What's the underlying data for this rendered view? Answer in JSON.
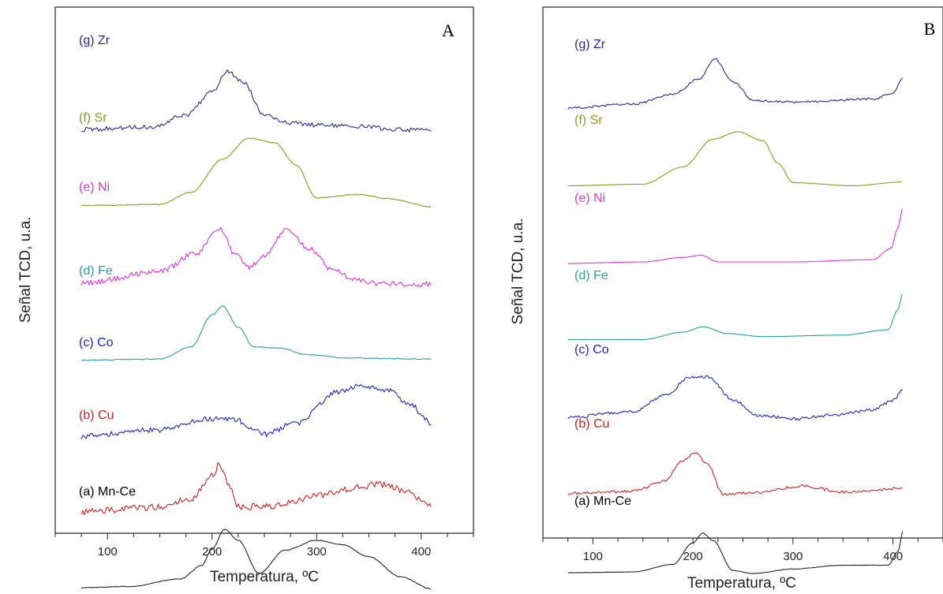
{
  "chart_data": [
    {
      "type": "line",
      "panel_label": "A",
      "xlabel": "Temperatura, ºC",
      "ylabel": "Señal TCD, u.a.",
      "xlim": [
        50,
        450
      ],
      "xticks": [
        100,
        200,
        300,
        400
      ],
      "xtick_labels": [
        "100",
        "200",
        "300",
        "400"
      ],
      "ylim": [
        0,
        7.2
      ],
      "x_range": [
        75,
        410
      ],
      "series": [
        {
          "name": "(a) Mn-Ce",
          "color": "#222222",
          "noise": 0.003,
          "x": [
            75,
            120,
            170,
            190,
            200,
            212,
            225,
            245,
            270,
            300,
            325,
            350,
            380,
            410
          ],
          "values": [
            0.07,
            0.08,
            0.15,
            0.27,
            0.42,
            0.6,
            0.5,
            0.2,
            0.41,
            0.5,
            0.46,
            0.35,
            0.17,
            0.06
          ]
        },
        {
          "name": "(b) Cu",
          "color": "#cc2222",
          "noise": 0.03,
          "x": [
            75,
            150,
            180,
            200,
            207,
            215,
            225,
            260,
            300,
            340,
            360,
            380,
            410
          ],
          "values": [
            0.06,
            0.1,
            0.18,
            0.39,
            0.49,
            0.32,
            0.1,
            0.11,
            0.2,
            0.28,
            0.31,
            0.26,
            0.12
          ]
        },
        {
          "name": "(c) Co",
          "color": "#2222bb",
          "noise": 0.025,
          "x": [
            75,
            150,
            200,
            220,
            250,
            280,
            320,
            345,
            370,
            390,
            410
          ],
          "values": [
            0.04,
            0.1,
            0.2,
            0.2,
            0.06,
            0.16,
            0.44,
            0.5,
            0.45,
            0.32,
            0.16
          ]
        },
        {
          "name": "(d) Fe",
          "color": "#2a9d9d",
          "noise": 0.004,
          "x": [
            75,
            150,
            180,
            200,
            210,
            225,
            240,
            265,
            290,
            330,
            410
          ],
          "values": [
            0.03,
            0.04,
            0.15,
            0.44,
            0.52,
            0.33,
            0.15,
            0.14,
            0.08,
            0.05,
            0.04
          ]
        },
        {
          "name": "(e) Ni",
          "color": "#dd33dd",
          "noise": 0.025,
          "x": [
            75,
            150,
            185,
            208,
            222,
            235,
            250,
            270,
            295,
            315,
            335,
            360,
            410
          ],
          "values": [
            0.03,
            0.13,
            0.3,
            0.52,
            0.28,
            0.17,
            0.28,
            0.5,
            0.33,
            0.15,
            0.06,
            0.02,
            0.02
          ]
        },
        {
          "name": "(f) Sr",
          "color": "#8a9a1e",
          "noise": 0.004,
          "x": [
            75,
            150,
            180,
            210,
            235,
            260,
            280,
            300,
            340,
            370,
            410
          ],
          "values": [
            0.03,
            0.04,
            0.15,
            0.45,
            0.64,
            0.6,
            0.4,
            0.1,
            0.13,
            0.09,
            0.02
          ]
        },
        {
          "name": "(g) Zr",
          "color": "#2a2a8a",
          "noise": 0.02,
          "x": [
            75,
            140,
            175,
            200,
            215,
            230,
            250,
            270,
            300,
            410
          ],
          "values": [
            0.02,
            0.04,
            0.15,
            0.36,
            0.55,
            0.44,
            0.15,
            0.08,
            0.06,
            0.01
          ]
        }
      ]
    },
    {
      "type": "line",
      "panel_label": "B",
      "xlabel": "Temperatura, ºC",
      "ylabel": "Señal TCD, u.a.",
      "xlim": [
        50,
        450
      ],
      "xticks": [
        100,
        200,
        300,
        400
      ],
      "xtick_labels": [
        "100",
        "200",
        "300",
        "400"
      ],
      "ylim": [
        0,
        7.2
      ],
      "x_range": [
        75,
        410
      ],
      "series": [
        {
          "name": "(a) Mn-Ce",
          "color": "#222222",
          "noise": 0.002,
          "x": [
            75,
            140,
            180,
            200,
            210,
            220,
            240,
            260,
            300,
            350,
            395,
            405,
            410
          ],
          "values": [
            0.02,
            0.03,
            0.13,
            0.42,
            0.55,
            0.45,
            0.05,
            0.01,
            0.07,
            0.12,
            0.12,
            0.3,
            0.58
          ]
        },
        {
          "name": "(b) Cu",
          "color": "#cc2222",
          "noise": 0.018,
          "x": [
            75,
            140,
            170,
            190,
            203,
            215,
            230,
            260,
            310,
            350,
            410
          ],
          "values": [
            0.04,
            0.07,
            0.2,
            0.47,
            0.59,
            0.42,
            0.03,
            0.05,
            0.14,
            0.06,
            0.11
          ]
        },
        {
          "name": "(c) Co",
          "color": "#2222bb",
          "noise": 0.02,
          "x": [
            75,
            140,
            175,
            195,
            215,
            240,
            265,
            300,
            340,
            380,
            400,
            410
          ],
          "values": [
            0.02,
            0.1,
            0.33,
            0.55,
            0.56,
            0.25,
            0.05,
            0.0,
            0.05,
            0.12,
            0.25,
            0.38
          ]
        },
        {
          "name": "(d) Fe",
          "color": "#2a9d9d",
          "noise": 0.0,
          "x": [
            75,
            150,
            190,
            210,
            235,
            270,
            350,
            395,
            405,
            410
          ],
          "values": [
            0.02,
            0.02,
            0.12,
            0.19,
            0.1,
            0.06,
            0.08,
            0.15,
            0.42,
            0.65
          ]
        },
        {
          "name": "(e) Ni",
          "color": "#dd33dd",
          "noise": 0.0,
          "x": [
            75,
            150,
            190,
            208,
            225,
            300,
            380,
            398,
            405,
            410
          ],
          "values": [
            0.0,
            0.02,
            0.08,
            0.11,
            0.02,
            0.02,
            0.05,
            0.2,
            0.48,
            0.75
          ]
        },
        {
          "name": "(f) Sr",
          "color": "#8a9a1e",
          "noise": 0.0,
          "x": [
            75,
            150,
            190,
            220,
            245,
            270,
            285,
            300,
            360,
            410
          ],
          "values": [
            0.0,
            0.02,
            0.25,
            0.62,
            0.72,
            0.6,
            0.3,
            0.04,
            0.0,
            0.05
          ]
        },
        {
          "name": "(g) Zr",
          "color": "#2a2a8a",
          "noise": 0.015,
          "x": [
            75,
            140,
            180,
            205,
            222,
            240,
            260,
            300,
            380,
            400,
            410
          ],
          "values": [
            0.0,
            0.05,
            0.18,
            0.38,
            0.65,
            0.35,
            0.1,
            0.08,
            0.12,
            0.2,
            0.4
          ]
        }
      ]
    }
  ]
}
